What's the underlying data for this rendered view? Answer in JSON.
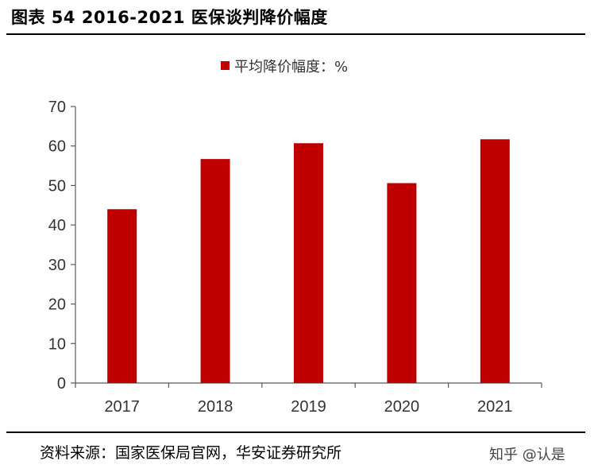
{
  "figure_title": "图表 54 2016-2021 医保谈判降价幅度",
  "source": "资料来源：国家医保局官网，华安证券研究所",
  "watermark": "知乎 @认是",
  "colors": {
    "bar": "#C00000",
    "axis": "#595959"
  },
  "chart_data": {
    "type": "bar",
    "categories": [
      "2017",
      "2018",
      "2019",
      "2020",
      "2021"
    ],
    "series": [
      {
        "name": "平均降价幅度：%",
        "values": [
          44,
          56.7,
          60.7,
          50.6,
          61.7
        ]
      }
    ],
    "ylim": [
      0,
      70
    ],
    "yticks": [
      0,
      10,
      20,
      30,
      40,
      50,
      60,
      70
    ],
    "grid": false,
    "legend": "top-center"
  }
}
